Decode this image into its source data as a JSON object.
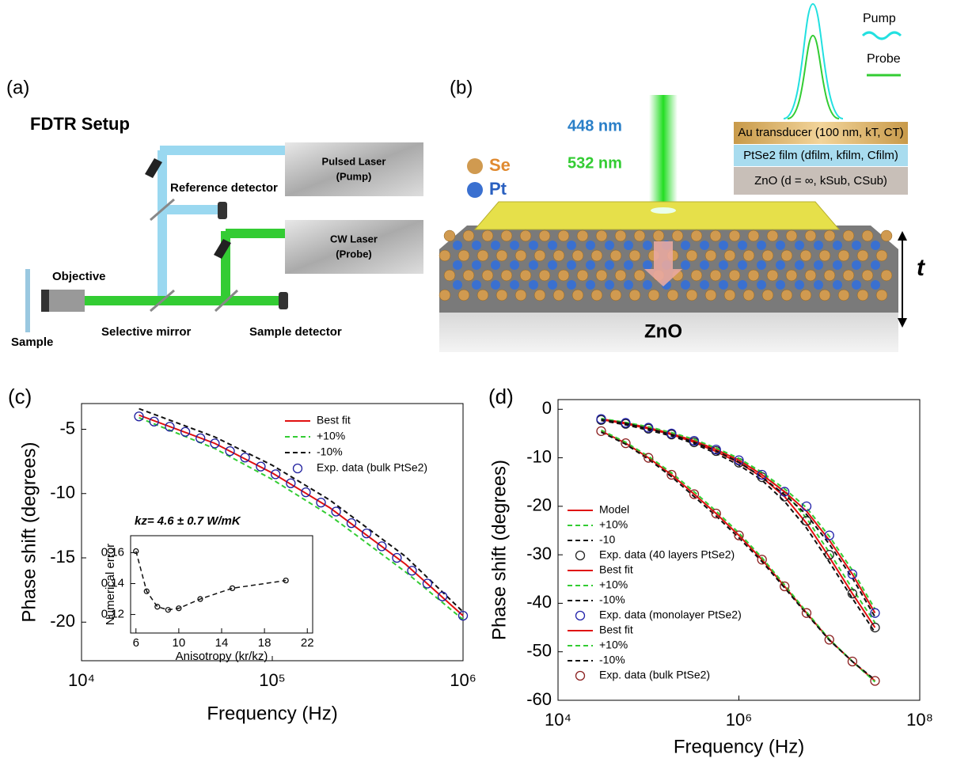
{
  "panel_a": {
    "label": "(a)",
    "title": "FDTR Setup",
    "pump_laser": "Pulsed Laser",
    "pump_sub": "(Pump)",
    "reference": "Reference detector",
    "probe_laser": "CW Laser",
    "probe_sub": "(Probe)",
    "objective": "Objective",
    "sample": "Sample",
    "mirror": "Selective mirror",
    "detector": "Sample detector"
  },
  "panel_b": {
    "label": "(b)",
    "pump_wavelength": "448 nm",
    "probe_wavelength": "532 nm",
    "se": "Se",
    "pt": "Pt",
    "substrate": "ZnO",
    "thickness": "t",
    "pump": "Pump",
    "probe": "Probe",
    "layer_au": "Au transducer (100 nm, kT, CT)",
    "layer_film": "PtSe2 film (dfilm, kfilm, Cfilm)",
    "layer_sub": "ZnO (d = ∞, kSub, CSub)"
  },
  "chart_data": [
    {
      "type": "line",
      "panel_label": "(c)",
      "xlabel": "Frequency (Hz)",
      "ylabel": "Phase shift (degrees)",
      "log_x": true,
      "xlim": [
        10000,
        1000000
      ],
      "ylim": [
        -23,
        -3
      ],
      "xticks": [
        {
          "value": 10000,
          "label": "10⁴"
        },
        {
          "value": 100000,
          "label": "10⁵"
        },
        {
          "value": 1000000,
          "label": "10⁶"
        }
      ],
      "yticks": [
        -5,
        -10,
        -15,
        -20
      ],
      "legend": "upper right",
      "series": [
        {
          "name": "Best fit",
          "color": "#e01010",
          "style": "solid",
          "x": [
            20000,
            50000,
            100000,
            200000,
            500000,
            1000000
          ],
          "values": [
            -3.9,
            -6.1,
            -8.4,
            -11.1,
            -15.5,
            -19.5
          ]
        },
        {
          "name": "+10%",
          "color": "#33cc33",
          "style": "dash",
          "x": [
            20000,
            50000,
            100000,
            200000,
            500000,
            1000000
          ],
          "values": [
            -4.1,
            -6.5,
            -8.9,
            -11.7,
            -16.1,
            -19.8
          ]
        },
        {
          "name": "-10%",
          "color": "#111111",
          "style": "dash",
          "x": [
            20000,
            50000,
            100000,
            200000,
            500000,
            1000000
          ],
          "values": [
            -3.4,
            -5.6,
            -7.8,
            -10.5,
            -14.9,
            -19.2
          ]
        },
        {
          "name": "Exp. data (bulk PtSe2)",
          "color": "#1f1f9e",
          "style": "circle",
          "x": [
            20000,
            24000,
            29000,
            35000,
            42000,
            50000,
            60000,
            72000,
            87000,
            104000,
            125000,
            150000,
            180000,
            216000,
            260000,
            312000,
            375000,
            450000,
            540000,
            650000,
            780000,
            1000000
          ],
          "values": [
            -4.0,
            -4.4,
            -4.8,
            -5.2,
            -5.7,
            -6.1,
            -6.7,
            -7.2,
            -7.9,
            -8.5,
            -9.2,
            -9.9,
            -10.7,
            -11.4,
            -12.3,
            -13.1,
            -14.1,
            -15.0,
            -16.0,
            -17.0,
            -18.0,
            -19.5
          ]
        }
      ]
    },
    {
      "type": "line",
      "title": "kz= 4.6 ± 0.7 W/mK",
      "xlabel": "Anisotropy (kr/kz)",
      "ylabel": "Numerical error",
      "xlim": [
        5.5,
        22.5
      ],
      "ylim": [
        0.108,
        0.171
      ],
      "xticks": [
        6,
        10,
        14,
        18,
        22
      ],
      "yticks": [
        0.12,
        0.14,
        0.16
      ],
      "x": [
        6,
        7,
        8,
        9,
        10,
        12,
        15,
        20
      ],
      "series": [
        {
          "color": "#111111",
          "style": "dash",
          "values": [
            0.161,
            0.135,
            0.125,
            0.123,
            0.124,
            0.13,
            0.137,
            0.142
          ]
        },
        {
          "color": "#111111",
          "style": "circle",
          "values": [
            0.161,
            0.135,
            0.125,
            0.123,
            0.124,
            0.13,
            0.137,
            0.142
          ]
        }
      ]
    },
    {
      "type": "line",
      "panel_label": "(d)",
      "xlabel": "Frequency (Hz)",
      "ylabel": "Phase shift (degrees)",
      "log_x": true,
      "xlim": [
        10000,
        100000000
      ],
      "ylim": [
        -60,
        2
      ],
      "xticks": [
        {
          "value": 10000,
          "label": "10⁴"
        },
        {
          "value": 1000000,
          "label": "10⁶"
        },
        {
          "value": 100000000,
          "label": "10⁸"
        }
      ],
      "yticks": [
        0,
        -10,
        -20,
        -30,
        -40,
        -50,
        -60
      ],
      "legend": "lower left",
      "x": [
        30000,
        56000,
        100000,
        180000,
        320000,
        560000,
        1000000,
        1800000,
        3200000,
        5600000,
        10000000,
        18000000,
        32000000
      ],
      "series": [
        {
          "name": "Model",
          "color": "#e01010",
          "style": "solid",
          "values": [
            -2.1,
            -3,
            -4,
            -5.2,
            -6.8,
            -8.7,
            -11,
            -14,
            -18,
            -23.5,
            -30.5,
            -38,
            -45
          ]
        },
        {
          "name": "+10%",
          "color": "#33cc33",
          "style": "dash",
          "values": [
            -2,
            -2.8,
            -3.8,
            -5,
            -6.5,
            -8.3,
            -10.5,
            -13.3,
            -17,
            -22.5,
            -29.5,
            -37,
            -44
          ]
        },
        {
          "name": "-10",
          "color": "#111111",
          "style": "dash",
          "values": [
            -2.3,
            -3.2,
            -4.3,
            -5.5,
            -7.1,
            -9.1,
            -11.5,
            -14.6,
            -19,
            -24.5,
            -31.5,
            -39,
            -46
          ]
        },
        {
          "name": "Exp. data (40 layers PtSe2)",
          "color": "#222222",
          "style": "circle",
          "values": [
            -2.2,
            -3,
            -4,
            -5.2,
            -6.8,
            -8.6,
            -11,
            -14,
            -18,
            -23,
            -30,
            -38,
            -45
          ]
        },
        {
          "name": "Best fit",
          "color": "#e01010",
          "style": "solid",
          "values": [
            -2,
            -2.8,
            -3.8,
            -5,
            -6.5,
            -8.3,
            -10.5,
            -13.5,
            -17,
            -21,
            -27,
            -34,
            -42
          ]
        },
        {
          "name": "+10%",
          "color": "#33cc33",
          "style": "dash",
          "values": [
            -1.9,
            -2.7,
            -3.6,
            -4.8,
            -6.2,
            -8,
            -10.1,
            -13,
            -16.4,
            -20.3,
            -26.2,
            -33.2,
            -41.2
          ]
        },
        {
          "name": "-10%",
          "color": "#111111",
          "style": "dash",
          "values": [
            -2.1,
            -2.9,
            -4,
            -5.2,
            -6.8,
            -8.6,
            -10.9,
            -14,
            -17.6,
            -21.7,
            -27.8,
            -34.8,
            -42.8
          ]
        },
        {
          "name": "Exp. data (monolayer PtSe2)",
          "color": "#2222aa",
          "style": "circle",
          "values": [
            -2,
            -2.8,
            -3.8,
            -5,
            -6.5,
            -8.3,
            -10.5,
            -13.5,
            -17,
            -20,
            -26,
            -34,
            -42
          ]
        },
        {
          "name": "Best fit",
          "color": "#e01010",
          "style": "solid",
          "values": [
            -4.5,
            -7,
            -10,
            -13.5,
            -17.5,
            -21.5,
            -26,
            -31,
            -36.5,
            -42,
            -47.5,
            -52,
            -56
          ]
        },
        {
          "name": "+10%",
          "color": "#33cc33",
          "style": "dash",
          "values": [
            -4.3,
            -6.8,
            -9.7,
            -13.1,
            -17,
            -21,
            -25.5,
            -30.6,
            -36.2,
            -41.8,
            -47.4,
            -52,
            -56.2
          ]
        },
        {
          "name": "-10%",
          "color": "#111111",
          "style": "dash",
          "values": [
            -4.7,
            -7.2,
            -10.3,
            -13.9,
            -18,
            -22,
            -26.5,
            -31.4,
            -36.8,
            -42.2,
            -47.6,
            -52,
            -55.8
          ]
        },
        {
          "name": "Exp. data (bulk PtSe2)",
          "color": "#8b2020",
          "style": "circle",
          "values": [
            -4.5,
            -7,
            -10,
            -13.5,
            -17.5,
            -21.5,
            -26,
            -31,
            -36.5,
            -42,
            -47.5,
            -52,
            -56
          ]
        }
      ]
    }
  ]
}
